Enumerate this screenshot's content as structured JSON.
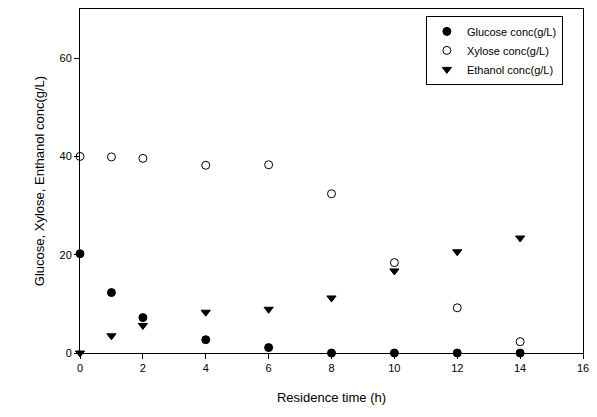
{
  "chart_data": {
    "type": "scatter",
    "x_label": "Residence time (h)",
    "y_label": "Glucose, Xylose, Enthanol conc(g/L)",
    "xlim": [
      0,
      16
    ],
    "xticks": [
      0,
      2,
      4,
      6,
      8,
      10,
      12,
      14,
      16
    ],
    "ylim": [
      0,
      70
    ],
    "yticks": [
      0,
      20,
      40,
      60
    ],
    "grid": false,
    "legend": "upper right",
    "series": [
      {
        "name": "Glucose conc(g/L)",
        "color": "#000000",
        "marker": "circle",
        "x": [
          0,
          1,
          2,
          4,
          6,
          8,
          10,
          12,
          14
        ],
        "values": [
          20.2,
          12.3,
          7.2,
          2.7,
          1.1,
          0,
          0,
          0,
          0
        ]
      },
      {
        "name": "Xylose conc(g/L)",
        "color": "#000000",
        "marker": "circle-open",
        "x": [
          0,
          1,
          2,
          4,
          6,
          8,
          10,
          12,
          14
        ],
        "values": [
          40,
          39.9,
          39.6,
          38.2,
          38.3,
          32.4,
          18.4,
          9.2,
          2.3
        ]
      },
      {
        "name": "Ethanol conc(g/L)",
        "color": "#000000",
        "marker": "triangle-down",
        "x": [
          0,
          1,
          2,
          4,
          6,
          8,
          10,
          12,
          14
        ],
        "values": [
          0,
          3.5,
          5.6,
          8.3,
          8.9,
          11.2,
          16.7,
          20.6,
          23.4
        ]
      }
    ]
  }
}
